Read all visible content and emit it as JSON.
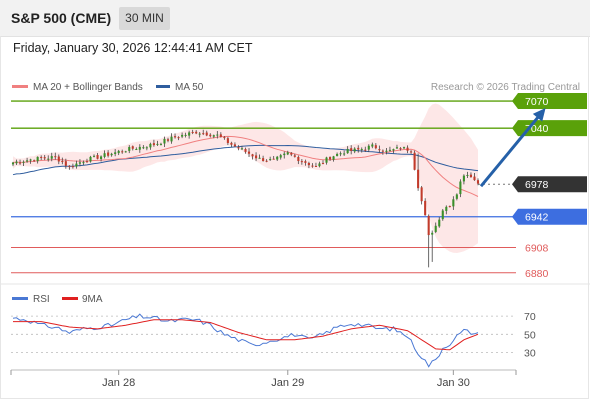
{
  "header": {
    "title": "S&P 500 (CME)",
    "interval": "30 MIN",
    "datetime": "Friday, January 30, 2026 12:44:41 AM CET"
  },
  "colors": {
    "resistance": "#5aa10a",
    "support": "#3d6ee0",
    "support_red": "#e05b5b",
    "price_label_bg": "#333333",
    "forecast_arrow": "#2560a8",
    "candle_up": "#3a8f2a",
    "candle_down": "#c23b2b",
    "ma20": "#f08080",
    "ma50": "#2f5d9e",
    "bollinger_fill": "#fde3e3",
    "rsi_line": "#4a78d4",
    "rsi_ma": "#e02020"
  },
  "chart_data": [
    {
      "type": "candlestick",
      "legend": [
        {
          "label": "MA 20 + Bollinger Bands",
          "color": "#f08080"
        },
        {
          "label": "MA 50",
          "color": "#2f5d9e"
        }
      ],
      "credit": "Research © 2026 Trading Central",
      "ylim": [
        6872,
        7080
      ],
      "x_ticks": [
        {
          "label": "Jan 28",
          "index": 30
        },
        {
          "label": "Jan 29",
          "index": 78
        },
        {
          "label": "Jan 30",
          "index": 125
        }
      ],
      "levels": [
        {
          "label": "7070",
          "value": 7070,
          "kind": "resistance"
        },
        {
          "label": "7040",
          "value": 7040,
          "kind": "resistance"
        },
        {
          "label": "6978",
          "value": 6978,
          "kind": "price"
        },
        {
          "label": "6942",
          "value": 6942,
          "kind": "support"
        },
        {
          "label": "6908",
          "value": 6908,
          "kind": "support_red"
        },
        {
          "label": "6880",
          "value": 6880,
          "kind": "support_red"
        }
      ],
      "forecast": {
        "from_index": 132,
        "from_value": 6978,
        "to_index": 143,
        "to_value": 7066
      },
      "close_anchors": [
        [
          0,
          7002
        ],
        [
          6,
          7006
        ],
        [
          12,
          7008
        ],
        [
          16,
          6997
        ],
        [
          20,
          7004
        ],
        [
          26,
          7010
        ],
        [
          32,
          7016
        ],
        [
          40,
          7022
        ],
        [
          46,
          7030
        ],
        [
          52,
          7036
        ],
        [
          58,
          7032
        ],
        [
          62,
          7022
        ],
        [
          66,
          7014
        ],
        [
          70,
          7006
        ],
        [
          74,
          7004
        ],
        [
          78,
          7012
        ],
        [
          82,
          7004
        ],
        [
          86,
          6997
        ],
        [
          90,
          7008
        ],
        [
          94,
          7014
        ],
        [
          98,
          7016
        ],
        [
          102,
          7020
        ],
        [
          104,
          7018
        ],
        [
          106,
          7014
        ],
        [
          110,
          7018
        ],
        [
          113,
          7016
        ],
        [
          115,
          6976
        ],
        [
          117,
          6942
        ],
        [
          118,
          6920
        ],
        [
          120,
          6932
        ],
        [
          122,
          6950
        ],
        [
          124,
          6956
        ],
        [
          126,
          6968
        ],
        [
          127,
          6982
        ],
        [
          129,
          6990
        ],
        [
          131,
          6985
        ],
        [
          132,
          6978
        ]
      ]
    },
    {
      "type": "line",
      "legend": [
        {
          "label": "RSI",
          "color": "#4a78d4"
        },
        {
          "label": "9MA",
          "color": "#e02020"
        }
      ],
      "ylim": [
        13,
        80
      ],
      "y_ticks": [
        "70",
        "50",
        "30"
      ],
      "rsi_anchors": [
        [
          0,
          68
        ],
        [
          4,
          66
        ],
        [
          8,
          60
        ],
        [
          12,
          58
        ],
        [
          16,
          52
        ],
        [
          20,
          56
        ],
        [
          24,
          58
        ],
        [
          28,
          60
        ],
        [
          32,
          66
        ],
        [
          36,
          70
        ],
        [
          40,
          68
        ],
        [
          44,
          64
        ],
        [
          48,
          66
        ],
        [
          52,
          66
        ],
        [
          56,
          60
        ],
        [
          60,
          50
        ],
        [
          64,
          44
        ],
        [
          68,
          38
        ],
        [
          72,
          42
        ],
        [
          76,
          46
        ],
        [
          80,
          50
        ],
        [
          84,
          44
        ],
        [
          88,
          50
        ],
        [
          92,
          58
        ],
        [
          96,
          62
        ],
        [
          100,
          60
        ],
        [
          104,
          56
        ],
        [
          108,
          56
        ],
        [
          112,
          48
        ],
        [
          115,
          30
        ],
        [
          118,
          16
        ],
        [
          120,
          22
        ],
        [
          122,
          35
        ],
        [
          124,
          40
        ],
        [
          126,
          48
        ],
        [
          128,
          54
        ],
        [
          130,
          52
        ],
        [
          132,
          50
        ]
      ],
      "ma_anchors": [
        [
          0,
          64
        ],
        [
          8,
          64
        ],
        [
          16,
          58
        ],
        [
          24,
          56
        ],
        [
          32,
          60
        ],
        [
          40,
          66
        ],
        [
          48,
          66
        ],
        [
          56,
          63
        ],
        [
          64,
          52
        ],
        [
          72,
          44
        ],
        [
          80,
          44
        ],
        [
          88,
          48
        ],
        [
          96,
          56
        ],
        [
          104,
          60
        ],
        [
          112,
          54
        ],
        [
          116,
          44
        ],
        [
          120,
          34
        ],
        [
          124,
          33
        ],
        [
          128,
          44
        ],
        [
          132,
          50
        ]
      ]
    }
  ]
}
